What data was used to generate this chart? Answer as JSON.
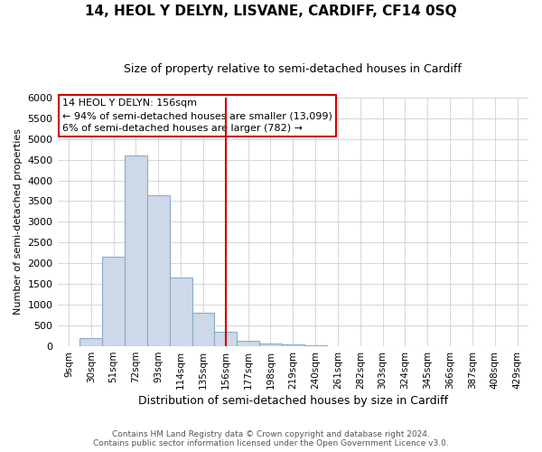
{
  "title": "14, HEOL Y DELYN, LISVANE, CARDIFF, CF14 0SQ",
  "subtitle": "Size of property relative to semi-detached houses in Cardiff",
  "xlabel": "Distribution of semi-detached houses by size in Cardiff",
  "ylabel": "Number of semi-detached properties",
  "annotation_text_line1": "14 HEOL Y DELYN: 156sqm",
  "annotation_text_line2": "← 94% of semi-detached houses are smaller (13,099)",
  "annotation_text_line3": "6% of semi-detached houses are larger (782) →",
  "bar_fill_color": "#cdd8e8",
  "bar_edge_color": "#8aaac8",
  "vline_color": "#cc0000",
  "box_edge_color": "#cc0000",
  "ylim": [
    0,
    6000
  ],
  "yticks": [
    0,
    500,
    1000,
    1500,
    2000,
    2500,
    3000,
    3500,
    4000,
    4500,
    5000,
    5500,
    6000
  ],
  "categories": [
    "9sqm",
    "30sqm",
    "51sqm",
    "72sqm",
    "93sqm",
    "114sqm",
    "135sqm",
    "156sqm",
    "177sqm",
    "198sqm",
    "219sqm",
    "240sqm",
    "261sqm",
    "282sqm",
    "303sqm",
    "324sqm",
    "345sqm",
    "366sqm",
    "387sqm",
    "408sqm",
    "429sqm"
  ],
  "values": [
    10,
    200,
    2150,
    4600,
    3650,
    1650,
    800,
    350,
    130,
    70,
    35,
    20,
    8,
    5,
    3,
    2,
    1,
    1,
    0,
    0,
    0
  ],
  "vline_bin": 7,
  "footer1": "Contains HM Land Registry data © Crown copyright and database right 2024.",
  "footer2": "Contains public sector information licensed under the Open Government Licence v3.0.",
  "background_color": "#ffffff",
  "grid_color": "#d0d0d0"
}
